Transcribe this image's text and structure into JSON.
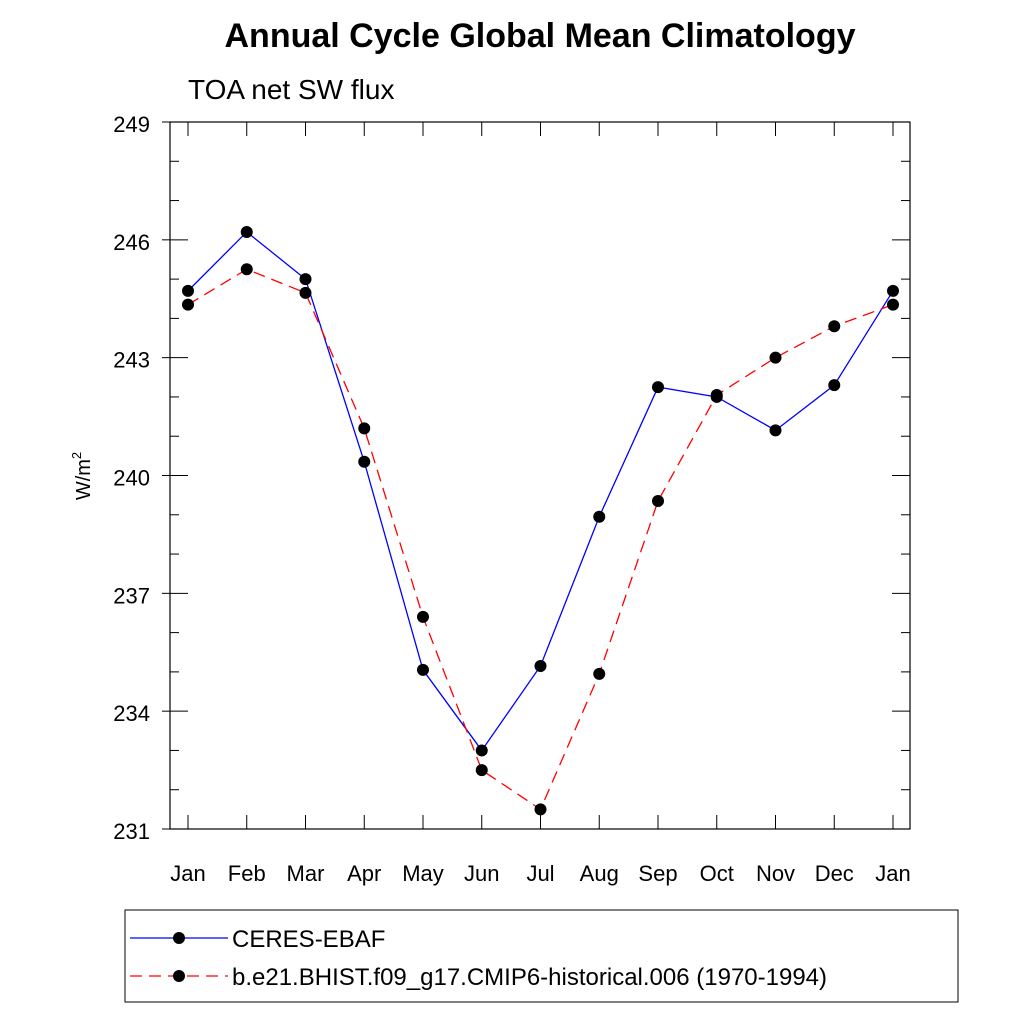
{
  "chart_data": {
    "type": "line",
    "title": "Annual Cycle Global Mean Climatology",
    "subtitle": "TOA net SW flux",
    "ylabel": "W/m",
    "ylabel_superscript": "2",
    "xlabel": "",
    "ylim": [
      231,
      249
    ],
    "yticks": [
      231,
      234,
      237,
      240,
      243,
      246,
      249
    ],
    "categories": [
      "Jan",
      "Feb",
      "Mar",
      "Apr",
      "May",
      "Jun",
      "Jul",
      "Aug",
      "Sep",
      "Oct",
      "Nov",
      "Dec",
      "Jan"
    ],
    "grid": false,
    "legend_position": "bottom",
    "series": [
      {
        "name": "CERES-EBAF",
        "color": "#0000ff",
        "dash": "solid",
        "marker": "filled-circle",
        "values": [
          244.7,
          246.2,
          245.0,
          240.35,
          235.05,
          233.0,
          235.15,
          238.95,
          242.25,
          242.0,
          241.15,
          242.3,
          244.7
        ]
      },
      {
        "name": "b.e21.BHIST.f09_g17.CMIP6-historical.006 (1970-1994)",
        "color": "#ff0000",
        "dash": "dashed",
        "marker": "filled-circle",
        "values": [
          244.35,
          245.25,
          244.65,
          241.2,
          236.4,
          232.5,
          231.5,
          234.95,
          239.35,
          242.05,
          243.0,
          243.8,
          244.35
        ]
      }
    ]
  }
}
